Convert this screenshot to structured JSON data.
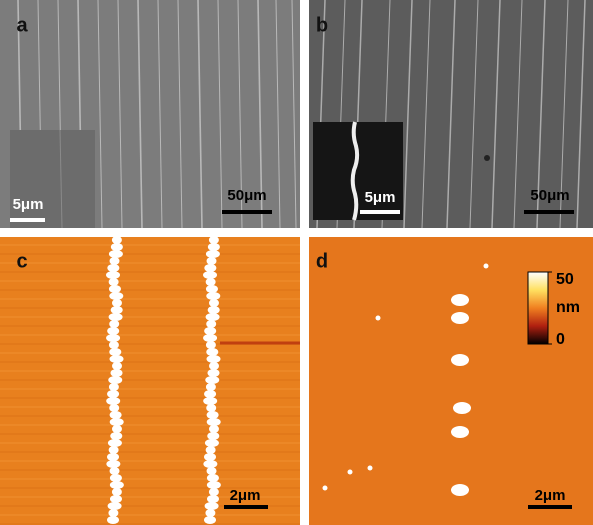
{
  "panels": [
    {
      "label": "a",
      "scale_bar": "50μm",
      "inset_scale_bar": "5μm"
    },
    {
      "label": "b",
      "scale_bar": "50μm",
      "inset_scale_bar": "5μm"
    },
    {
      "label": "c",
      "scale_bar": "2μm"
    },
    {
      "label": "d",
      "scale_bar": "2μm",
      "colorbar": {
        "lim": [
          0,
          50
        ],
        "ticks": [
          0,
          50
        ],
        "unit": "nm"
      }
    }
  ]
}
